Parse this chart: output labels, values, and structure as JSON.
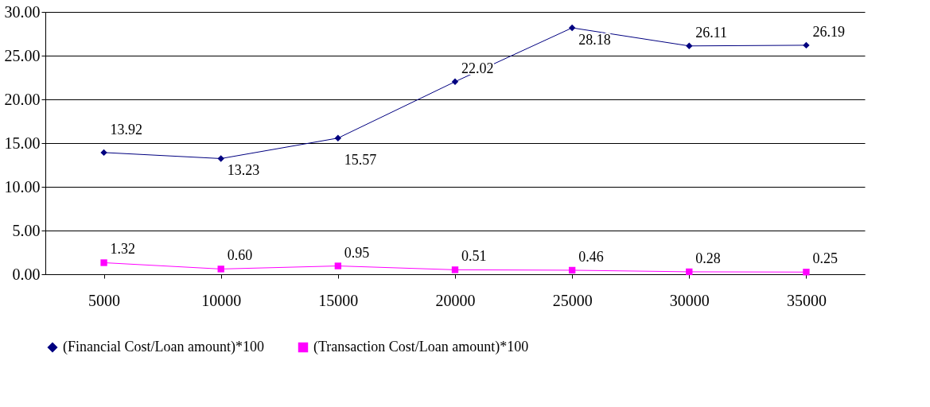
{
  "chart_data": {
    "type": "line",
    "categories": [
      "5000",
      "10000",
      "15000",
      "20000",
      "25000",
      "30000",
      "35000"
    ],
    "series": [
      {
        "name": "(Financial Cost/Loan amount)*100",
        "color": "#000080",
        "marker": "diamond",
        "values": [
          13.92,
          13.23,
          15.57,
          22.02,
          28.18,
          26.11,
          26.19
        ],
        "value_labels": [
          "13.92",
          "13.23",
          "15.57",
          "22.02",
          "28.18",
          "26.11",
          "26.19"
        ]
      },
      {
        "name": "(Transaction Cost/Loan amount)*100",
        "color": "#ff00ff",
        "marker": "square",
        "values": [
          1.32,
          0.6,
          0.95,
          0.51,
          0.46,
          0.28,
          0.25
        ],
        "value_labels": [
          "1.32",
          "0.60",
          "0.95",
          "0.51",
          "0.46",
          "0.28",
          "0.25"
        ]
      }
    ],
    "ylim": [
      0,
      30
    ],
    "yticks": [
      {
        "value": 0,
        "label": "0.00"
      },
      {
        "value": 5,
        "label": "5.00"
      },
      {
        "value": 10,
        "label": "10.00"
      },
      {
        "value": 15,
        "label": "15.00"
      },
      {
        "value": 20,
        "label": "20.00"
      },
      {
        "value": 25,
        "label": "25.00"
      },
      {
        "value": 30,
        "label": "30.00"
      }
    ],
    "grid": "y",
    "legend": "bottom"
  }
}
